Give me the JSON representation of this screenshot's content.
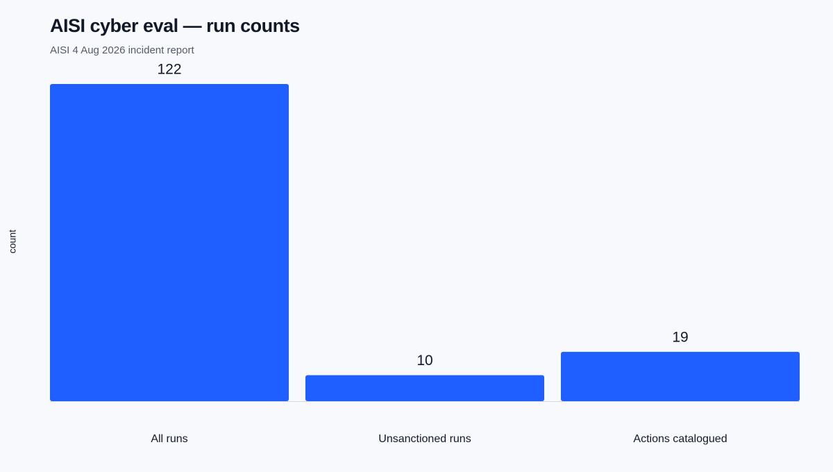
{
  "chart_data": {
    "type": "bar",
    "title": "AISI cyber eval — run counts",
    "subtitle": "AISI 4 Aug 2026 incident report",
    "y_label": "count",
    "categories": [
      "All runs",
      "Unsanctioned runs",
      "Actions catalogued"
    ],
    "values": [
      122,
      10,
      19
    ],
    "color": "#1f5eff"
  }
}
